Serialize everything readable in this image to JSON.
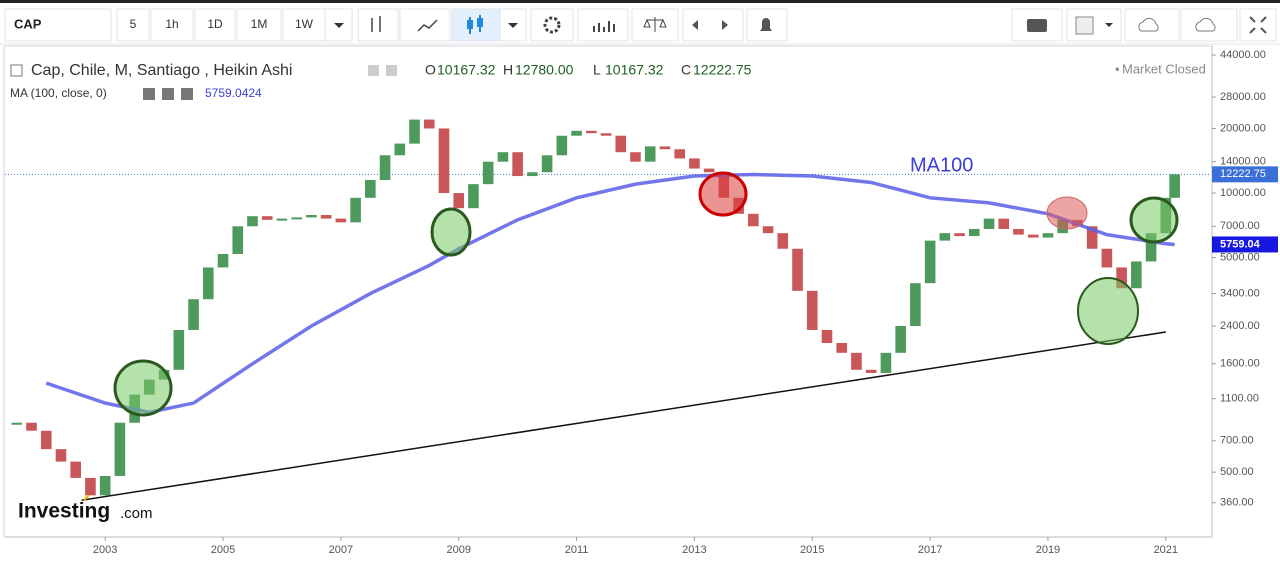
{
  "toolbar": {
    "symbol": "CAP",
    "intervals": [
      "5",
      "1h",
      "1D",
      "1M",
      "1W"
    ]
  },
  "chart_data": {
    "type": "candlestick",
    "title": "Cap, Chile, M, Santiago , Heikin Ashi",
    "ohlc_labels": [
      "O",
      "H",
      "L",
      "C"
    ],
    "ohlc": {
      "open": 10167.32,
      "high": {
        "value": 12780,
        "label": "12780.00"
      },
      "low": 10167.32,
      "close": 12222.75
    },
    "status": "Market Closed",
    "annotation": "MA100",
    "log_scale": true,
    "xlim": [
      2001.3,
      2021.75
    ],
    "xticks": [
      2003,
      2005,
      2007,
      2009,
      2011,
      2013,
      2015,
      2017,
      2019,
      2021
    ],
    "ylim": [
      252,
      48460
    ],
    "yticks": [
      {
        "value": 360,
        "label": "360.00"
      },
      {
        "value": 500,
        "label": "500.00"
      },
      {
        "value": 700,
        "label": "700.00"
      },
      {
        "value": 1100,
        "label": "1100.00"
      },
      {
        "value": 1600,
        "label": "1600.00"
      },
      {
        "value": 2400,
        "label": "2400.00"
      },
      {
        "value": 3400,
        "label": "3400.00"
      },
      {
        "value": 5000,
        "label": "5000.00"
      },
      {
        "value": 7000,
        "label": "7000.00"
      },
      {
        "value": 10000,
        "label": "10000.00"
      },
      {
        "value": 14000,
        "label": "14000.00"
      },
      {
        "value": 20000,
        "label": "20000.00"
      },
      {
        "value": 28000,
        "label": "28000.00"
      },
      {
        "value": 44000,
        "label": "44000.00"
      }
    ],
    "series": [
      {
        "name": "CAP",
        "color": "#4e9a5c",
        "down_color": "#c9575a",
        "x": [
          2001.5,
          2001.75,
          2002,
          2002.25,
          2002.5,
          2002.75,
          2003,
          2003.25,
          2003.5,
          2003.75,
          2004,
          2004.25,
          2004.5,
          2004.75,
          2005,
          2005.25,
          2005.5,
          2005.75,
          2006,
          2006.25,
          2006.5,
          2006.75,
          2007,
          2007.25,
          2007.5,
          2007.75,
          2008,
          2008.25,
          2008.5,
          2008.75,
          2009,
          2009.25,
          2009.5,
          2009.75,
          2010,
          2010.25,
          2010.5,
          2010.75,
          2011,
          2011.25,
          2011.5,
          2011.75,
          2012,
          2012.25,
          2012.5,
          2012.75,
          2013,
          2013.25,
          2013.5,
          2013.75,
          2014,
          2014.25,
          2014.5,
          2014.75,
          2015,
          2015.25,
          2015.5,
          2015.75,
          2016,
          2016.25,
          2016.5,
          2016.75,
          2017,
          2017.25,
          2017.5,
          2017.75,
          2018,
          2018.25,
          2018.5,
          2018.75,
          2019,
          2019.25,
          2019.5,
          2019.75,
          2020,
          2020.25,
          2020.5,
          2020.75,
          2021,
          2021.15
        ],
        "values": [
          850,
          780,
          640,
          560,
          470,
          390,
          480,
          850,
          1150,
          1350,
          1500,
          2300,
          3200,
          4500,
          5200,
          7000,
          7800,
          7500,
          7600,
          7700,
          7900,
          7600,
          7300,
          9500,
          11500,
          15000,
          17000,
          22000,
          20000,
          10000,
          8500,
          11000,
          14000,
          15500,
          12000,
          12500,
          15000,
          18500,
          19500,
          19000,
          18500,
          15500,
          14000,
          16500,
          16000,
          14500,
          13000,
          12500,
          9500,
          8000,
          7000,
          6500,
          5500,
          3500,
          2300,
          2000,
          1800,
          1500,
          1450,
          1800,
          2400,
          3800,
          6000,
          6500,
          6300,
          6800,
          7600,
          6800,
          6400,
          6200,
          6500,
          7500,
          7000,
          5500,
          4500,
          3600,
          4800,
          6500,
          9500,
          12222.75
        ]
      }
    ],
    "ma": {
      "name": "MA (100, close, 0)",
      "value": 5759.0424,
      "axis_label": {
        "value": 5759.04,
        "label": "5759.04"
      },
      "color": "#5b5ee6",
      "x": [
        2002,
        2003,
        2003.75,
        2004.5,
        2005.5,
        2006.5,
        2007.5,
        2008.5,
        2009,
        2010,
        2011,
        2012,
        2013,
        2014,
        2015,
        2016,
        2017,
        2018,
        2019,
        2020,
        2021,
        2021.15
      ],
      "values": [
        1300,
        1050,
        950,
        1050,
        1600,
        2400,
        3400,
        4600,
        5500,
        7500,
        9500,
        11000,
        12000,
        12200,
        12000,
        11200,
        9500,
        9000,
        8000,
        6400,
        5800,
        5759.04
      ]
    },
    "trendline": {
      "x": [
        2002.6,
        2021.0
      ],
      "y": [
        370,
        2250
      ]
    }
  },
  "branding": {
    "name": "Investing",
    "suffix": ".com"
  }
}
